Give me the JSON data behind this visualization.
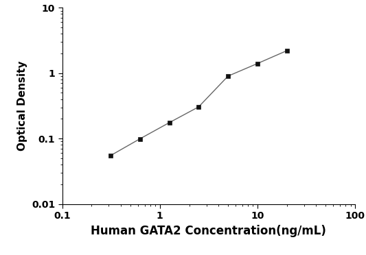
{
  "x": [
    0.313,
    0.625,
    1.25,
    2.5,
    5,
    10,
    20
  ],
  "y": [
    0.055,
    0.099,
    0.175,
    0.305,
    0.9,
    1.4,
    2.2
  ],
  "xlabel": "Human GATA2 Concentration(ng/mL)",
  "ylabel": "Optical Density",
  "xlim": [
    0.1,
    100
  ],
  "ylim": [
    0.01,
    10
  ],
  "line_color": "#666666",
  "marker_color": "#111111",
  "marker": "s",
  "marker_size": 5,
  "line_width": 1.0,
  "background_color": "#ffffff",
  "xticks": [
    0.1,
    1,
    10,
    100
  ],
  "yticks": [
    0.01,
    0.1,
    1,
    10
  ],
  "xlabel_fontsize": 12,
  "ylabel_fontsize": 11,
  "tick_fontsize": 10
}
